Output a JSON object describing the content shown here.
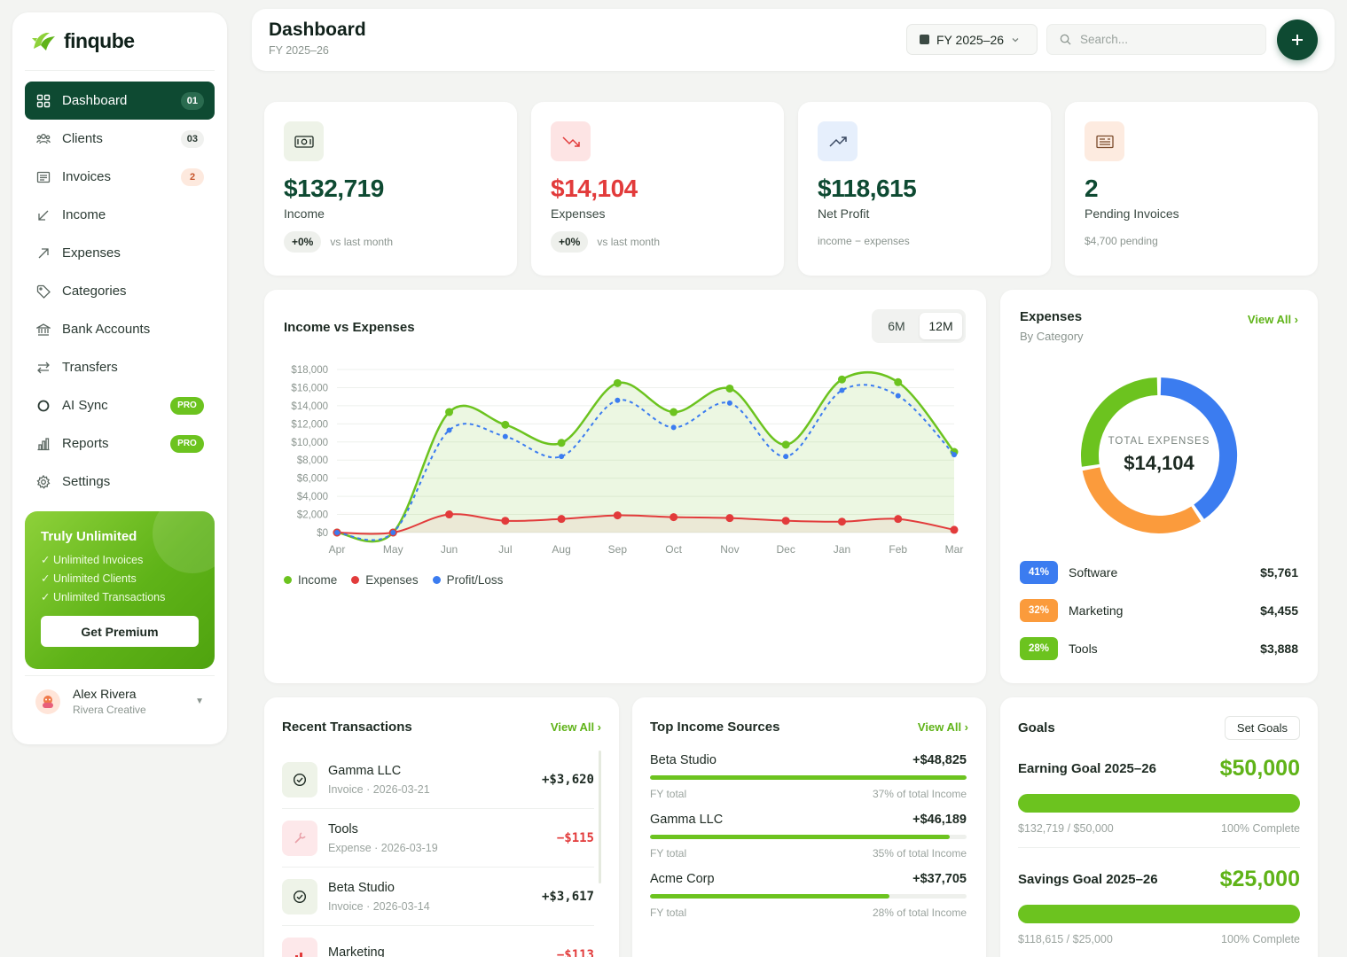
{
  "brand": {
    "name": "finqube"
  },
  "sidebar": {
    "items": [
      {
        "label": "Dashboard",
        "badge": "01",
        "icon": "grid-icon"
      },
      {
        "label": "Clients",
        "badge": "03",
        "icon": "users-icon"
      },
      {
        "label": "Invoices",
        "badge": "2",
        "icon": "invoice-icon"
      },
      {
        "label": "Income",
        "badge": "",
        "icon": "arrow-down-left-icon"
      },
      {
        "label": "Expenses",
        "badge": "",
        "icon": "arrow-up-right-icon"
      },
      {
        "label": "Categories",
        "badge": "",
        "icon": "tag-icon"
      },
      {
        "label": "Bank Accounts",
        "badge": "",
        "icon": "bank-icon"
      },
      {
        "label": "Transfers",
        "badge": "",
        "icon": "transfer-icon"
      },
      {
        "label": "AI Sync",
        "badge": "PRO",
        "icon": "sync-icon"
      },
      {
        "label": "Reports",
        "badge": "PRO",
        "icon": "bar-chart-icon"
      },
      {
        "label": "Settings",
        "badge": "",
        "icon": "gear-icon"
      }
    ],
    "promo": {
      "title": "Truly Unlimited",
      "items": [
        "✓ Unlimited Invoices",
        "✓ Unlimited Clients",
        "✓ Unlimited Transactions"
      ],
      "button": "Get Premium"
    },
    "user": {
      "name": "Alex Rivera",
      "org": "Rivera Creative"
    }
  },
  "header": {
    "title": "Dashboard",
    "subtitle": "FY 2025–26",
    "fy_select": "FY 2025–26",
    "search_placeholder": "Search..."
  },
  "stats": [
    {
      "value": "$132,719",
      "label": "Income",
      "chip": "+0%",
      "foot": "vs last month",
      "color": "#0e4a32"
    },
    {
      "value": "$14,104",
      "label": "Expenses",
      "chip": "+0%",
      "foot": "vs last month",
      "color": "#e23b3b"
    },
    {
      "value": "$118,615",
      "label": "Net Profit",
      "chip": "",
      "foot": "income − expenses",
      "color": "#0e4a32"
    },
    {
      "value": "2",
      "label": "Pending Invoices",
      "chip": "",
      "foot": "$4,700 pending",
      "color": "#0e4a32"
    }
  ],
  "income_chart": {
    "title": "Income vs Expenses",
    "range_options": [
      "6M",
      "12M"
    ],
    "selected_range": "12M"
  },
  "chart_data": {
    "type": "line",
    "categories": [
      "Apr",
      "May",
      "Jun",
      "Jul",
      "Aug",
      "Sep",
      "Oct",
      "Nov",
      "Dec",
      "Jan",
      "Feb",
      "Mar"
    ],
    "y_ticks": [
      "$0",
      "$2,000",
      "$4,000",
      "$6,000",
      "$8,000",
      "$10,000",
      "$12,000",
      "$14,000",
      "$16,000",
      "$18,000"
    ],
    "ylim": [
      0,
      18000
    ],
    "series": [
      {
        "name": "Income",
        "color": "#6cc31f",
        "values": [
          0,
          0,
          13300,
          11900,
          9900,
          16500,
          13300,
          15900,
          9700,
          16900,
          16600,
          8900
        ]
      },
      {
        "name": "Expenses",
        "color": "#e23b3b",
        "values": [
          0,
          0,
          2000,
          1300,
          1500,
          1900,
          1700,
          1600,
          1300,
          1200,
          1500,
          300
        ]
      },
      {
        "name": "Profit/Loss",
        "color": "#3b7cf0",
        "values": [
          0,
          0,
          11300,
          10600,
          8400,
          14600,
          11600,
          14300,
          8400,
          15700,
          15100,
          8600
        ]
      }
    ],
    "legend": "bottom-left",
    "grid": true
  },
  "expenses_card": {
    "title": "Expenses",
    "subtitle": "By Category",
    "view_all": "View All ›",
    "donut_label": "TOTAL EXPENSES",
    "donut_value": "$14,104",
    "categories": [
      {
        "pct": "41%",
        "share": 41,
        "name": "Software",
        "amount": "$5,761",
        "color": "#3b7cf0"
      },
      {
        "pct": "32%",
        "share": 32,
        "name": "Marketing",
        "amount": "$4,455",
        "color": "#fb9b3c"
      },
      {
        "pct": "28%",
        "share": 28,
        "name": "Tools",
        "amount": "$3,888",
        "color": "#6cc31f"
      }
    ]
  },
  "transactions": {
    "title": "Recent Transactions",
    "view_all": "View All ›",
    "rows": [
      {
        "name": "Gamma LLC",
        "meta": "Invoice · 2026-03-21",
        "amount": "+$3,620",
        "type": "income"
      },
      {
        "name": "Tools",
        "meta": "Expense · 2026-03-19",
        "amount": "−$115",
        "type": "expense"
      },
      {
        "name": "Beta Studio",
        "meta": "Invoice · 2026-03-14",
        "amount": "+$3,617",
        "type": "income"
      },
      {
        "name": "Marketing",
        "meta": "",
        "amount": "−$113",
        "type": "expense"
      }
    ]
  },
  "income_sources": {
    "title": "Top Income Sources",
    "view_all": "View All ›",
    "rows": [
      {
        "name": "Beta Studio",
        "amount": "+$48,825",
        "sub": "FY total",
        "share_label": "37% of total Income",
        "share": 37
      },
      {
        "name": "Gamma LLC",
        "amount": "+$46,189",
        "sub": "FY total",
        "share_label": "35% of total Income",
        "share": 35
      },
      {
        "name": "Acme Corp",
        "amount": "+$37,705",
        "sub": "FY total",
        "share_label": "28% of total Income",
        "share": 28
      }
    ]
  },
  "goals": {
    "title": "Goals",
    "set_goals": "Set Goals",
    "items": [
      {
        "name": "Earning Goal 2025–26",
        "target": "$50,000",
        "progress": "$132,719 / $50,000",
        "complete": "100% Complete",
        "percent": 100
      },
      {
        "name": "Savings Goal 2025–26",
        "target": "$25,000",
        "progress": "$118,615 / $25,000",
        "complete": "100% Complete",
        "percent": 100
      }
    ]
  }
}
